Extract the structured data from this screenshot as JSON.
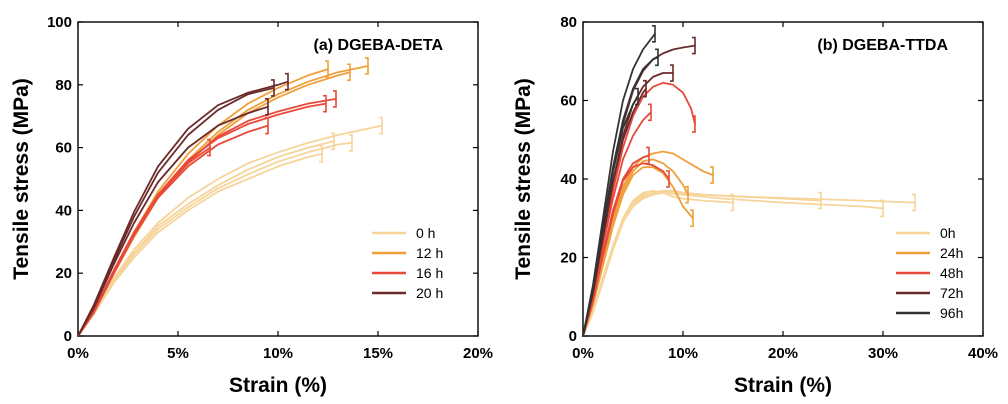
{
  "chart_data": [
    {
      "type": "line",
      "title": "(a) DGEBA-DETA",
      "xlabel": "Strain (%)",
      "ylabel": "Tensile stress (MPa)",
      "xlim": [
        0,
        20
      ],
      "ylim": [
        0,
        100
      ],
      "xticks": [
        0,
        5,
        10,
        15,
        20
      ],
      "xtick_labels": [
        "0%",
        "5%",
        "10%",
        "15%",
        "20%"
      ],
      "yticks": [
        0,
        20,
        40,
        60,
        80,
        100
      ],
      "ytick_labels": [
        "0",
        "20",
        "40",
        "60",
        "80",
        "100"
      ],
      "legend_position": "bottom-right",
      "series": [
        {
          "name": "0 h",
          "color": "#f6d49a",
          "curves": [
            {
              "x": [
                0,
                0.8,
                1.8,
                2.8,
                4,
                5.5,
                7,
                8.5,
                10,
                11.5,
                12.2
              ],
              "y": [
                0,
                7,
                17,
                25,
                33,
                40,
                46,
                50,
                54,
                57,
                58
              ]
            },
            {
              "x": [
                0,
                0.8,
                1.8,
                2.8,
                4,
                5.5,
                7,
                8.5,
                10,
                11.5,
                12.8
              ],
              "y": [
                0,
                7.5,
                18,
                26.5,
                35,
                42,
                48,
                53,
                57,
                60,
                62
              ]
            },
            {
              "x": [
                0,
                0.8,
                1.8,
                2.8,
                4,
                5.5,
                7,
                8.5,
                10,
                11.5,
                13,
                13.7
              ],
              "y": [
                0,
                7,
                17.5,
                26,
                34,
                41,
                47,
                51.5,
                55.5,
                58.5,
                61,
                61.5
              ]
            },
            {
              "x": [
                0,
                0.8,
                1.8,
                2.8,
                4,
                5.5,
                7,
                8.5,
                10,
                11.5,
                13,
                15.2
              ],
              "y": [
                0,
                7.5,
                18.5,
                27.5,
                36,
                44,
                50,
                55,
                58.5,
                61.5,
                64,
                67
              ]
            }
          ]
        },
        {
          "name": "12 h",
          "color": "#f0a03a",
          "curves": [
            {
              "x": [
                0,
                0.8,
                1.8,
                2.8,
                4,
                5.5,
                7,
                8.5,
                10,
                11.5,
                12.5
              ],
              "y": [
                0,
                8,
                21,
                33,
                46,
                58,
                67,
                74,
                79,
                83,
                85
              ]
            },
            {
              "x": [
                0,
                0.8,
                1.8,
                2.8,
                4,
                5.5,
                7,
                8.5,
                10,
                11.5,
                13,
                13.6
              ],
              "y": [
                0,
                7.5,
                20,
                31.5,
                44,
                55,
                64,
                71,
                76,
                80,
                83,
                84
              ]
            },
            {
              "x": [
                0,
                0.8,
                1.8,
                2.8,
                4,
                5.5,
                7,
                8.5,
                10,
                11.5,
                13,
                14.5
              ],
              "y": [
                0,
                8,
                20.5,
                32.5,
                45,
                56,
                65,
                72,
                77,
                81,
                84,
                86
              ]
            }
          ]
        },
        {
          "name": "16 h",
          "color": "#e8493a",
          "curves": [
            {
              "x": [
                0,
                0.8,
                1.8,
                2.8,
                4,
                5.5,
                6.6
              ],
              "y": [
                0,
                8,
                21,
                33,
                45,
                55,
                60
              ]
            },
            {
              "x": [
                0,
                0.8,
                1.8,
                2.8,
                4,
                5.5,
                7,
                8.5,
                9.5
              ],
              "y": [
                0,
                7.5,
                20,
                32,
                44,
                54,
                61,
                65,
                67
              ]
            },
            {
              "x": [
                0,
                0.8,
                1.8,
                2.8,
                4,
                5.5,
                7,
                8.5,
                10,
                11.5,
                12.4
              ],
              "y": [
                0,
                8,
                21,
                33,
                45,
                56,
                63,
                67.5,
                70.5,
                73,
                74
              ]
            },
            {
              "x": [
                0,
                0.8,
                1.8,
                2.8,
                4,
                5.5,
                7,
                8.5,
                10,
                11.5,
                12.9
              ],
              "y": [
                0,
                7.5,
                20.5,
                32.5,
                44.5,
                55.5,
                63.5,
                68.5,
                71.5,
                74,
                75.5
              ]
            }
          ]
        },
        {
          "name": "20 h",
          "color": "#6b2a2a",
          "curves": [
            {
              "x": [
                0,
                0.8,
                1.8,
                2.8,
                4,
                5.5,
                7,
                8.5,
                9.5
              ],
              "y": [
                0,
                9,
                23,
                36,
                49,
                60,
                67,
                71,
                73
              ]
            },
            {
              "x": [
                0,
                0.8,
                1.8,
                2.8,
                4,
                5.5,
                7,
                8.5,
                9.8
              ],
              "y": [
                0,
                9.5,
                24,
                38,
                52,
                64,
                72,
                77,
                79
              ]
            },
            {
              "x": [
                0,
                0.8,
                1.8,
                2.8,
                4,
                5.5,
                7,
                8.5,
                10,
                10.5
              ],
              "y": [
                0,
                10,
                25,
                39.5,
                54,
                66,
                73.5,
                77.5,
                80,
                81
              ]
            }
          ]
        }
      ]
    },
    {
      "type": "line",
      "title": "(b) DGEBA-TTDA",
      "xlabel": "Strain (%)",
      "ylabel": "Tensile stress (MPa)",
      "xlim": [
        0,
        40
      ],
      "ylim": [
        0,
        80
      ],
      "xticks": [
        0,
        10,
        20,
        30,
        40
      ],
      "xtick_labels": [
        "0%",
        "10%",
        "20%",
        "30%",
        "40%"
      ],
      "yticks": [
        0,
        20,
        40,
        60,
        80
      ],
      "ytick_labels": [
        "0",
        "20",
        "40",
        "60",
        "80"
      ],
      "legend_position": "bottom-right",
      "series": [
        {
          "name": "0h",
          "color": "#f6d49a",
          "curves": [
            {
              "x": [
                0,
                1,
                2,
                3,
                4,
                5,
                6,
                7,
                8,
                10,
                14,
                20,
                24,
                28,
                30
              ],
              "y": [
                0,
                6,
                14,
                22,
                29,
                33,
                35,
                36,
                36.5,
                36,
                35,
                34,
                33.5,
                33,
                32.5
              ]
            },
            {
              "x": [
                0,
                1,
                2,
                3,
                4,
                5,
                6,
                7,
                8,
                9,
                10,
                12,
                15
              ],
              "y": [
                0,
                6.5,
                15,
                23,
                30,
                34.5,
                36.5,
                37,
                36.5,
                35.5,
                35,
                34.5,
                34
              ]
            },
            {
              "x": [
                0,
                1,
                2,
                3,
                4,
                5,
                6,
                7,
                8,
                10,
                12,
                16,
                20,
                23.8
              ],
              "y": [
                0,
                6,
                14.5,
                22.5,
                29.5,
                34,
                36,
                36.5,
                37,
                36.5,
                36,
                35.5,
                35,
                34.5
              ]
            },
            {
              "x": [
                0,
                1,
                2,
                3,
                4,
                5,
                6,
                7,
                8,
                9,
                10,
                12,
                16,
                22,
                28,
                33.2
              ],
              "y": [
                0,
                6,
                14,
                22,
                29,
                33.5,
                35.5,
                36.5,
                37,
                37,
                36.5,
                36,
                35.5,
                35,
                34.5,
                34
              ]
            }
          ]
        },
        {
          "name": "24h",
          "color": "#f0a03a",
          "curves": [
            {
              "x": [
                0,
                1,
                2,
                3,
                4,
                5,
                6,
                7,
                8,
                9,
                10,
                11
              ],
              "y": [
                0,
                8,
                18,
                28,
                36,
                41,
                43,
                43,
                41.5,
                38,
                33,
                30
              ]
            },
            {
              "x": [
                0,
                1,
                2,
                3,
                4,
                5,
                6,
                7,
                8,
                9,
                10,
                10.5
              ],
              "y": [
                0,
                8,
                19,
                29,
                37,
                42,
                44.5,
                45,
                44,
                42,
                38.5,
                36
              ]
            },
            {
              "x": [
                0,
                1,
                2,
                3,
                4,
                5,
                6,
                7,
                8,
                9,
                10,
                11,
                12,
                13
              ],
              "y": [
                0,
                8,
                19,
                29.5,
                38,
                43,
                45.5,
                46.5,
                47,
                46.5,
                45,
                43.5,
                42,
                41
              ]
            }
          ]
        },
        {
          "name": "48h",
          "color": "#e8493a",
          "curves": [
            {
              "x": [
                0,
                1,
                2,
                3,
                4,
                5,
                6,
                6.6
              ],
              "y": [
                0,
                9,
                21,
                32,
                40,
                44,
                45.5,
                46
              ]
            },
            {
              "x": [
                0,
                1,
                2,
                3,
                4,
                5,
                6,
                7,
                8,
                8.6
              ],
              "y": [
                0,
                9,
                20.5,
                31,
                39.5,
                43,
                44,
                43.5,
                42,
                40
              ]
            },
            {
              "x": [
                0,
                1,
                2,
                3,
                4,
                5,
                6,
                6.8
              ],
              "y": [
                0,
                10,
                23,
                35,
                45,
                51,
                55,
                57
              ]
            },
            {
              "x": [
                0,
                1,
                2,
                3,
                4,
                5,
                6,
                7,
                8,
                9,
                10,
                10.8,
                11.2
              ],
              "y": [
                0,
                10,
                24,
                37,
                48,
                56,
                61,
                63.5,
                64.5,
                64,
                62,
                58,
                54
              ]
            }
          ]
        },
        {
          "name": "72h",
          "color": "#6b2a2a",
          "curves": [
            {
              "x": [
                0,
                1,
                2,
                3,
                4,
                5,
                6,
                6.3
              ],
              "y": [
                0,
                11,
                25,
                39,
                50,
                57,
                62,
                63
              ]
            },
            {
              "x": [
                0,
                1,
                2,
                3,
                4,
                5,
                6,
                7,
                8,
                9
              ],
              "y": [
                0,
                11,
                25.5,
                39.5,
                51,
                59,
                63.5,
                66,
                67,
                67
              ]
            },
            {
              "x": [
                0,
                1,
                2,
                3,
                4,
                5,
                6,
                7,
                8,
                9,
                10,
                11.2
              ],
              "y": [
                0,
                11.5,
                27,
                42,
                54,
                62.5,
                67.5,
                70.5,
                72,
                73,
                73.5,
                74
              ]
            }
          ]
        },
        {
          "name": "96h",
          "color": "#333333",
          "curves": [
            {
              "x": [
                0,
                1,
                2,
                3,
                4,
                5,
                5.5
              ],
              "y": [
                0,
                12,
                27,
                42,
                53,
                59,
                61
              ]
            },
            {
              "x": [
                0,
                1,
                2,
                3,
                4,
                5,
                6,
                7,
                7.5
              ],
              "y": [
                0,
                12,
                28,
                43,
                55,
                63,
                68,
                70.5,
                71
              ]
            },
            {
              "x": [
                0,
                1,
                2,
                3,
                4,
                5,
                6,
                7.2
              ],
              "y": [
                0,
                13,
                30,
                47,
                60,
                68,
                73,
                77
              ]
            }
          ]
        }
      ]
    }
  ]
}
